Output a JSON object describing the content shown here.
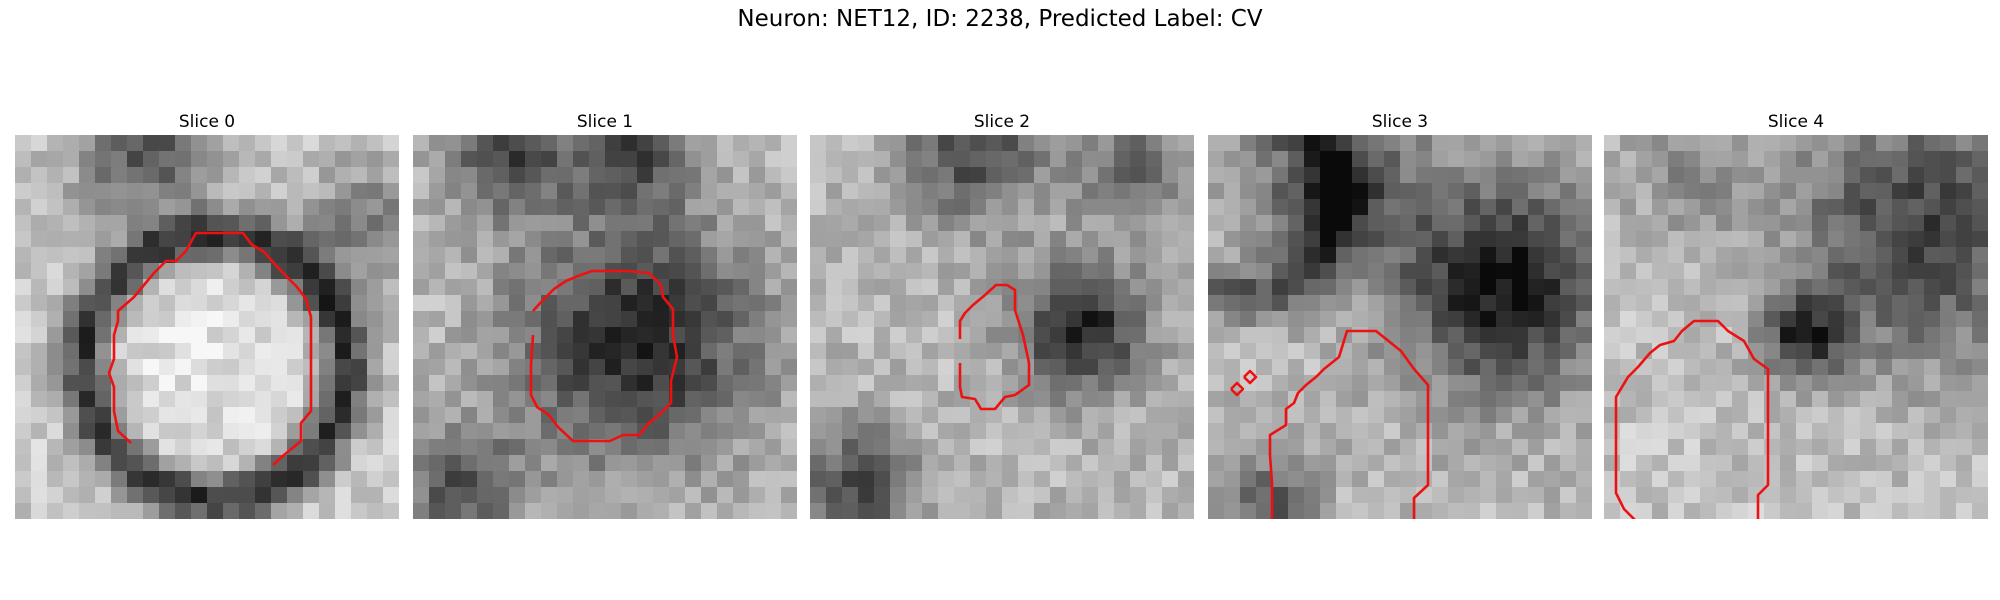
{
  "title": "Neuron: NET12, ID: 2238, Predicted Label: CV",
  "contour_color": "#ee1111",
  "panels": [
    {
      "label": "Slice 0",
      "pattern": "ring-bright"
    },
    {
      "label": "Slice 1",
      "pattern": "dark-blob"
    },
    {
      "label": "Slice 2",
      "pattern": "mixed"
    },
    {
      "label": "Slice 3",
      "pattern": "dark-right"
    },
    {
      "label": "Slice 4",
      "pattern": "gradient"
    }
  ]
}
